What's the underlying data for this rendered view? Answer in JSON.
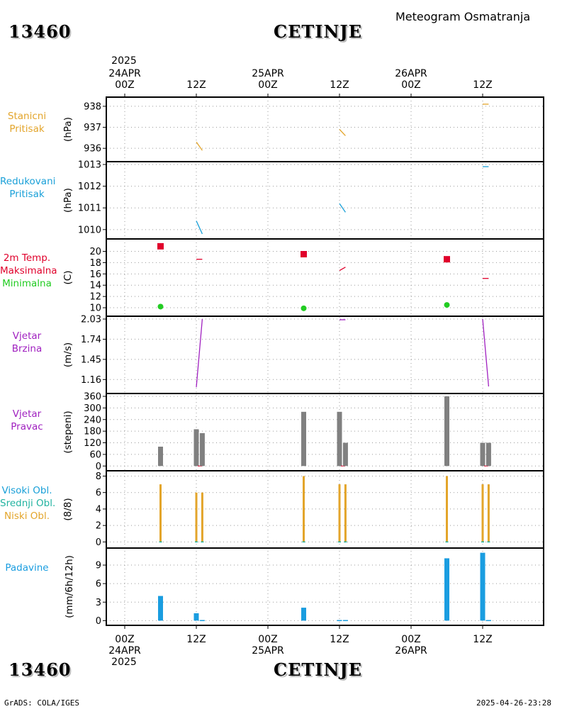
{
  "header": {
    "station_id": "13460",
    "station_name": "CETINJE",
    "subtitle": "Meteogram Osmatranja",
    "year": "2025"
  },
  "footer": {
    "left": "GrADS: COLA/IGES",
    "right": "2025-04-26-23:28"
  },
  "time_axis": {
    "top_labels": [
      {
        "line1": "24APR",
        "line2": "00Z"
      },
      {
        "line1": "",
        "line2": "12Z"
      },
      {
        "line1": "25APR",
        "line2": "00Z"
      },
      {
        "line1": "",
        "line2": "12Z"
      },
      {
        "line1": "26APR",
        "line2": "00Z"
      },
      {
        "line1": "",
        "line2": "12Z"
      }
    ],
    "bottom_labels": [
      {
        "line1": "00Z",
        "line2": "24APR"
      },
      {
        "line1": "12Z",
        "line2": ""
      },
      {
        "line1": "00Z",
        "line2": "25APR"
      },
      {
        "line1": "12Z",
        "line2": ""
      },
      {
        "line1": "00Z",
        "line2": "26APR"
      },
      {
        "line1": "12Z",
        "line2": ""
      }
    ]
  },
  "colors": {
    "station_pressure": "#e3a52b",
    "reduced_pressure": "#1aa0d8",
    "tmax": "#e0002b",
    "tmin": "#22cc22",
    "wind": "#a020c0",
    "bars": "#808080",
    "cloud_high": "#1aa0d8",
    "cloud_mid": "#22b3a0",
    "cloud_low": "#e3a52b",
    "precip": "#1a9de0"
  },
  "chart_data": [
    {
      "type": "line",
      "id": "station_pressure",
      "labels": [
        {
          "text": "Stanicni",
          "color": "#e3a52b"
        },
        {
          "text": "Pritisak",
          "color": "#e3a52b"
        }
      ],
      "ylabel": "(hPa)",
      "x_unit": "hours since 2025-04-24 00Z",
      "ylim": [
        935.5,
        938.3
      ],
      "yticks": [
        936,
        937,
        938
      ],
      "segments": [
        {
          "x": [
            12,
            13
          ],
          "y": [
            936.3,
            935.9
          ],
          "color": "#e3a52b"
        },
        {
          "x": [
            36,
            37
          ],
          "y": [
            936.9,
            936.6
          ],
          "color": "#e3a52b"
        },
        {
          "x": [
            60,
            61
          ],
          "y": [
            938.1,
            938.1
          ],
          "color": "#e3a52b"
        }
      ]
    },
    {
      "type": "line",
      "id": "reduced_pressure",
      "labels": [
        {
          "text": "Redukovani",
          "color": "#1aa0d8"
        },
        {
          "text": "Pritisak",
          "color": "#1aa0d8"
        }
      ],
      "ylabel": "(hPa)",
      "ylim": [
        1009.7,
        1013.0
      ],
      "yticks": [
        1010,
        1011,
        1012,
        1013
      ],
      "segments": [
        {
          "x": [
            12,
            13
          ],
          "y": [
            1010.4,
            1009.8
          ],
          "color": "#1aa0d8"
        },
        {
          "x": [
            36,
            37
          ],
          "y": [
            1011.2,
            1010.8
          ],
          "color": "#1aa0d8"
        },
        {
          "x": [
            60,
            61
          ],
          "y": [
            1012.9,
            1012.9
          ],
          "color": "#1aa0d8"
        }
      ]
    },
    {
      "type": "scatter",
      "id": "temperature",
      "labels": [
        {
          "text": "2m Temp.",
          "color": "#e0002b"
        },
        {
          "text": "Maksimalna",
          "color": "#e0002b"
        },
        {
          "text": "Minimalna",
          "color": "#22cc22"
        }
      ],
      "ylabel": "(C)",
      "ylim": [
        9,
        21.7
      ],
      "yticks": [
        10,
        12,
        14,
        16,
        18,
        20
      ],
      "tmax_points": {
        "x": [
          6,
          30,
          54
        ],
        "y": [
          20.9,
          19.5,
          18.6
        ]
      },
      "tmin_points": {
        "x": [
          6,
          30,
          54
        ],
        "y": [
          10.2,
          9.9,
          10.5
        ]
      },
      "segments": [
        {
          "x": [
            12,
            13
          ],
          "y": [
            18.6,
            18.6
          ],
          "color": "#e0002b"
        },
        {
          "x": [
            36,
            37
          ],
          "y": [
            16.6,
            17.2
          ],
          "color": "#e0002b"
        },
        {
          "x": [
            60,
            61
          ],
          "y": [
            15.2,
            15.2
          ],
          "color": "#e0002b"
        }
      ]
    },
    {
      "type": "line",
      "id": "wind_speed",
      "labels": [
        {
          "text": "Vjetar",
          "color": "#a020c0"
        },
        {
          "text": "Brzina",
          "color": "#a020c0"
        }
      ],
      "ylabel": "(m/s)",
      "ylim": [
        1.0,
        2.03
      ],
      "yticks": [
        1.16,
        1.45,
        1.74,
        2.03
      ],
      "segments": [
        {
          "x": [
            12,
            13
          ],
          "y": [
            1.05,
            2.03
          ],
          "color": "#a020c0"
        },
        {
          "x": [
            36,
            37
          ],
          "y": [
            2.02,
            2.02
          ],
          "color": "#a020c0"
        },
        {
          "x": [
            60,
            61
          ],
          "y": [
            2.03,
            1.06
          ],
          "color": "#a020c0"
        }
      ]
    },
    {
      "type": "bar",
      "id": "wind_direction",
      "labels": [
        {
          "text": "Vjetar",
          "color": "#a020c0"
        },
        {
          "text": "Pravac",
          "color": "#a020c0"
        }
      ],
      "ylabel": "(stepeni)",
      "ylim": [
        -10,
        360
      ],
      "yticks": [
        0,
        60,
        120,
        180,
        240,
        300,
        360
      ],
      "ytick_labels": [
        "0",
        "60",
        "120",
        "180",
        "240",
        "300",
        "360"
      ],
      "bars": [
        {
          "x": 6,
          "value": 100
        },
        {
          "x": 12,
          "value": 190
        },
        {
          "x": 13,
          "value": 170
        },
        {
          "x": 30,
          "value": 280
        },
        {
          "x": 36,
          "value": 280
        },
        {
          "x": 37,
          "value": 120
        },
        {
          "x": 54,
          "value": 360
        },
        {
          "x": 60,
          "value": 120
        },
        {
          "x": 61,
          "value": 120
        }
      ],
      "bar_color": "#808080"
    },
    {
      "type": "bar",
      "id": "cloud_cover",
      "labels": [
        {
          "text": "Visoki Obl.",
          "color": "#1aa0d8"
        },
        {
          "text": "Srednji Obl.",
          "color": "#22b3a0"
        },
        {
          "text": "Niski Obl.",
          "color": "#e3a52b"
        }
      ],
      "ylabel": "(8/8)",
      "ylim": [
        -0.4,
        8.3
      ],
      "yticks": [
        0,
        2,
        4,
        6,
        8
      ],
      "bars": [
        {
          "x": 6,
          "value": 7
        },
        {
          "x": 12,
          "value": 6
        },
        {
          "x": 13,
          "value": 6
        },
        {
          "x": 30,
          "value": 8
        },
        {
          "x": 36,
          "value": 7
        },
        {
          "x": 37,
          "value": 7
        },
        {
          "x": 54,
          "value": 8
        },
        {
          "x": 60,
          "value": 7
        },
        {
          "x": 61,
          "value": 7
        }
      ],
      "bar_color": "#e3a52b"
    },
    {
      "type": "bar",
      "id": "precipitation",
      "labels": [
        {
          "text": "Padavine",
          "color": "#1a9de0"
        }
      ],
      "ylabel": "(mm/6h/12h)",
      "ylim": [
        -0.3,
        11.3
      ],
      "yticks": [
        0,
        3,
        6,
        9
      ],
      "bars": [
        {
          "x": 6,
          "value": 4.0
        },
        {
          "x": 12,
          "value": 1.2
        },
        {
          "x": 13,
          "value": 0.1
        },
        {
          "x": 30,
          "value": 2.1
        },
        {
          "x": 36,
          "value": 0.1
        },
        {
          "x": 37,
          "value": 0.1
        },
        {
          "x": 54,
          "value": 10.1
        },
        {
          "x": 60,
          "value": 11.0
        },
        {
          "x": 61,
          "value": 0.1
        }
      ],
      "bar_color": "#1a9de0"
    }
  ]
}
